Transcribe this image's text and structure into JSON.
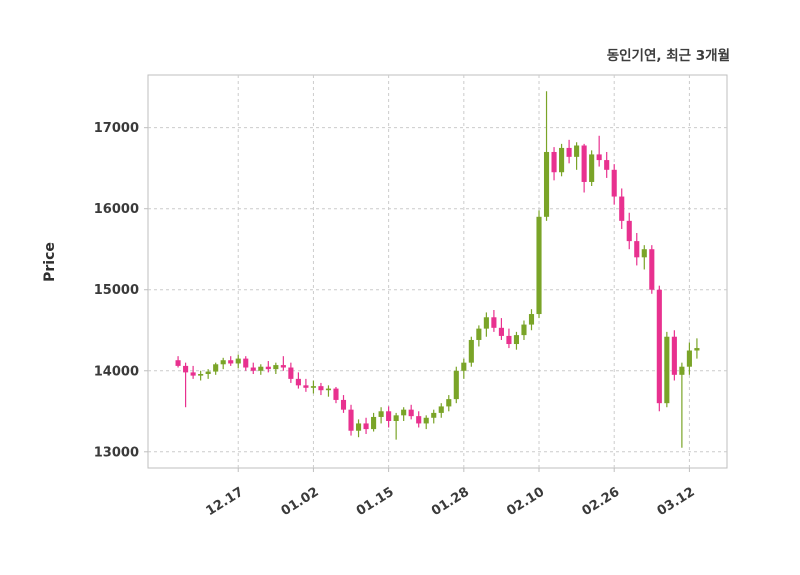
{
  "chart_data": {
    "type": "candlestick",
    "title": "동인기연, 최근 3개월",
    "ylabel": "Price",
    "ylim": [
      12800,
      17650
    ],
    "yticks": [
      13000,
      14000,
      15000,
      16000,
      17000
    ],
    "xticks": [
      {
        "index": 8,
        "label": "12.17"
      },
      {
        "index": 18,
        "label": "01.02"
      },
      {
        "index": 28,
        "label": "01.15"
      },
      {
        "index": 38,
        "label": "01.28"
      },
      {
        "index": 48,
        "label": "02.10"
      },
      {
        "index": 58,
        "label": "02.26"
      },
      {
        "index": 68,
        "label": "03.12"
      }
    ],
    "grid": true,
    "legend": "none",
    "colors": {
      "up": "#7aa428",
      "down": "#e8318f",
      "grid": "#cccccc",
      "spine": "#bfbfbf",
      "tick_text": "#3a3a3a",
      "background": "#ffffff"
    },
    "candles_format": [
      "open",
      "high",
      "low",
      "close"
    ],
    "candles": [
      [
        14130,
        14180,
        14040,
        14060
      ],
      [
        14060,
        14100,
        13550,
        13980
      ],
      [
        13980,
        14060,
        13900,
        13940
      ],
      [
        13940,
        14000,
        13880,
        13960
      ],
      [
        13960,
        14020,
        13900,
        13990
      ],
      [
        13990,
        14100,
        13950,
        14080
      ],
      [
        14080,
        14160,
        14020,
        14130
      ],
      [
        14130,
        14180,
        14060,
        14090
      ],
      [
        14090,
        14200,
        14030,
        14150
      ],
      [
        14150,
        14180,
        14000,
        14040
      ],
      [
        14040,
        14100,
        13960,
        14000
      ],
      [
        14000,
        14080,
        13950,
        14050
      ],
      [
        14050,
        14120,
        13980,
        14020
      ],
      [
        14020,
        14100,
        13960,
        14070
      ],
      [
        14070,
        14180,
        14000,
        14040
      ],
      [
        14040,
        14100,
        13850,
        13900
      ],
      [
        13900,
        13980,
        13780,
        13820
      ],
      [
        13820,
        13900,
        13740,
        13790
      ],
      [
        13790,
        13880,
        13720,
        13810
      ],
      [
        13810,
        13850,
        13700,
        13760
      ],
      [
        13760,
        13820,
        13680,
        13780
      ],
      [
        13780,
        13800,
        13600,
        13640
      ],
      [
        13640,
        13700,
        13480,
        13520
      ],
      [
        13520,
        13580,
        13200,
        13260
      ],
      [
        13260,
        13400,
        13180,
        13350
      ],
      [
        13350,
        13420,
        13220,
        13280
      ],
      [
        13280,
        13480,
        13250,
        13430
      ],
      [
        13430,
        13550,
        13350,
        13500
      ],
      [
        13500,
        13560,
        13300,
        13380
      ],
      [
        13380,
        13480,
        13150,
        13450
      ],
      [
        13450,
        13550,
        13380,
        13520
      ],
      [
        13520,
        13580,
        13400,
        13440
      ],
      [
        13440,
        13500,
        13300,
        13350
      ],
      [
        13350,
        13450,
        13280,
        13420
      ],
      [
        13420,
        13520,
        13350,
        13480
      ],
      [
        13480,
        13600,
        13420,
        13560
      ],
      [
        13560,
        13700,
        13500,
        13650
      ],
      [
        13650,
        14050,
        13600,
        14000
      ],
      [
        14000,
        14150,
        13900,
        14100
      ],
      [
        14100,
        14420,
        14050,
        14380
      ],
      [
        14380,
        14560,
        14300,
        14520
      ],
      [
        14520,
        14720,
        14420,
        14660
      ],
      [
        14660,
        14750,
        14480,
        14530
      ],
      [
        14530,
        14650,
        14380,
        14430
      ],
      [
        14430,
        14520,
        14280,
        14330
      ],
      [
        14330,
        14480,
        14260,
        14440
      ],
      [
        14440,
        14620,
        14380,
        14570
      ],
      [
        14570,
        14760,
        14500,
        14700
      ],
      [
        14700,
        15980,
        14650,
        15900
      ],
      [
        15900,
        17450,
        15850,
        16700
      ],
      [
        16700,
        16760,
        16350,
        16450
      ],
      [
        16450,
        16800,
        16400,
        16750
      ],
      [
        16750,
        16850,
        16560,
        16640
      ],
      [
        16640,
        16820,
        16480,
        16780
      ],
      [
        16780,
        16800,
        16200,
        16330
      ],
      [
        16330,
        16720,
        16280,
        16670
      ],
      [
        16670,
        16900,
        16520,
        16600
      ],
      [
        16600,
        16700,
        16380,
        16480
      ],
      [
        16480,
        16550,
        16050,
        16150
      ],
      [
        16150,
        16250,
        15750,
        15850
      ],
      [
        15850,
        15950,
        15500,
        15600
      ],
      [
        15600,
        15700,
        15300,
        15400
      ],
      [
        15400,
        15550,
        15250,
        15500
      ],
      [
        15500,
        15550,
        14950,
        15000
      ],
      [
        15000,
        15050,
        13500,
        13600
      ],
      [
        13600,
        14480,
        13550,
        14420
      ],
      [
        14420,
        14500,
        13880,
        13950
      ],
      [
        13950,
        14100,
        13050,
        14050
      ],
      [
        14050,
        14350,
        13950,
        14250
      ],
      [
        14250,
        14400,
        14150,
        14280
      ]
    ]
  }
}
